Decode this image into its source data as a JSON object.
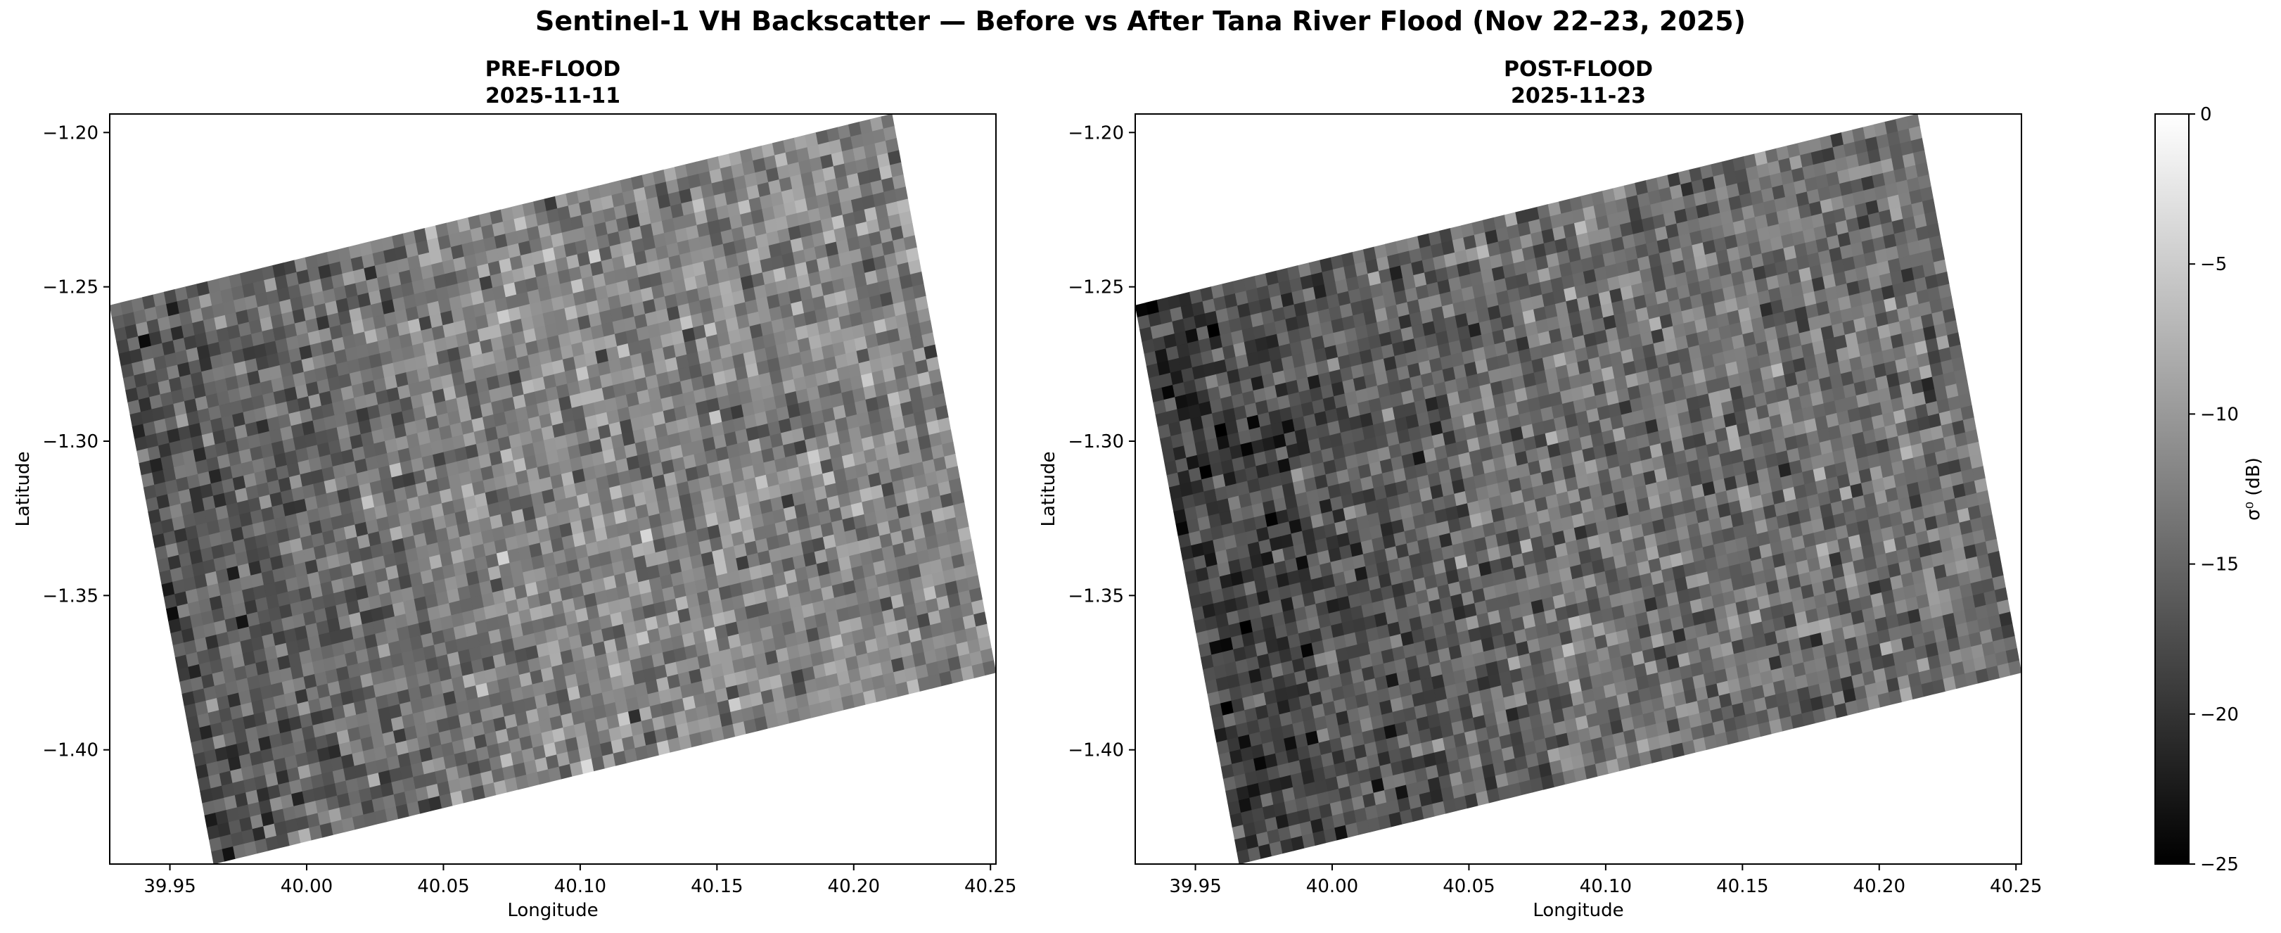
{
  "figure": {
    "suptitle": "Sentinel-1 VH Backscatter — Before vs After Tana River Flood (Nov 22–23, 2025)"
  },
  "chart_data": [
    {
      "type": "heatmap",
      "title_line1": "PRE-FLOOD",
      "title_line2": "2025-11-11",
      "xlabel": "Longitude",
      "ylabel": "Latitude",
      "xlim": [
        39.928,
        40.252
      ],
      "ylim": [
        -1.437,
        -1.194
      ],
      "xticks": [
        "39.95",
        "40.00",
        "40.05",
        "40.10",
        "40.15",
        "40.20",
        "40.25"
      ],
      "xtick_values": [
        39.95,
        40.0,
        40.05,
        40.1,
        40.15,
        40.2,
        40.25
      ],
      "yticks": [
        "−1.20",
        "−1.25",
        "−1.30",
        "−1.35",
        "−1.40"
      ],
      "ytick_values": [
        -1.2,
        -1.25,
        -1.3,
        -1.35,
        -1.4
      ],
      "footprint_corners_lonlat": [
        [
          39.928,
          -1.256
        ],
        [
          40.214,
          -1.194
        ],
        [
          40.252,
          -1.373
        ],
        [
          39.966,
          -1.437
        ]
      ],
      "value_range_db": [
        -25,
        0
      ],
      "mean_db": -13,
      "west_mean_db": -17,
      "east_mean_db": -12
    },
    {
      "type": "heatmap",
      "title_line1": "POST-FLOOD",
      "title_line2": "2025-11-23",
      "xlabel": "Longitude",
      "ylabel": "Latitude",
      "xlim": [
        39.928,
        40.252
      ],
      "ylim": [
        -1.437,
        -1.194
      ],
      "xticks": [
        "39.95",
        "40.00",
        "40.05",
        "40.10",
        "40.15",
        "40.20",
        "40.25"
      ],
      "xtick_values": [
        39.95,
        40.0,
        40.05,
        40.1,
        40.15,
        40.2,
        40.25
      ],
      "yticks": [
        "−1.20",
        "−1.25",
        "−1.30",
        "−1.35",
        "−1.40"
      ],
      "ytick_values": [
        -1.2,
        -1.25,
        -1.3,
        -1.35,
        -1.4
      ],
      "footprint_corners_lonlat": [
        [
          39.928,
          -1.256
        ],
        [
          40.214,
          -1.194
        ],
        [
          40.252,
          -1.373
        ],
        [
          39.966,
          -1.437
        ]
      ],
      "value_range_db": [
        -25,
        0
      ],
      "mean_db": -15,
      "west_mean_db": -19,
      "east_mean_db": -14
    }
  ],
  "colorbar": {
    "label": "σ⁰ (dB)",
    "min": -25,
    "max": 0,
    "ticks": [
      "0",
      "−5",
      "−10",
      "−15",
      "−20",
      "−25"
    ],
    "tick_values": [
      0,
      -5,
      -10,
      -15,
      -20,
      -25
    ],
    "colormap": "gray"
  }
}
